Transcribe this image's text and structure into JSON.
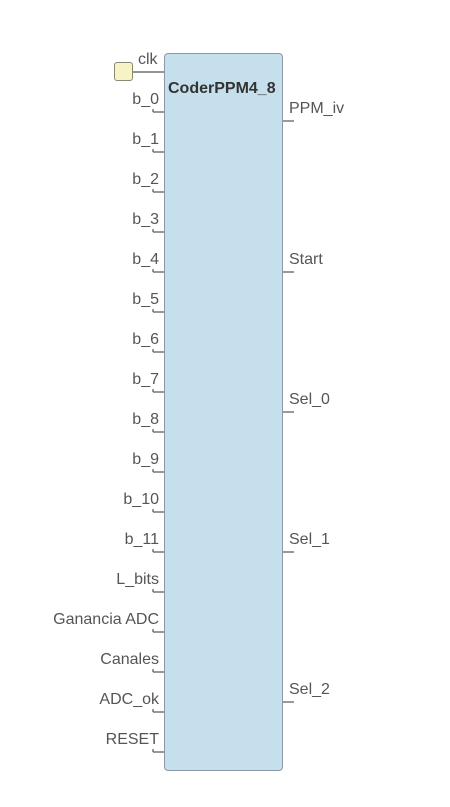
{
  "block": {
    "title": "CoderPPM4_8"
  },
  "clock": {
    "label": "clk",
    "marker_color": "#f6f3c6"
  },
  "inputs": [
    {
      "label": "b_0"
    },
    {
      "label": "b_1"
    },
    {
      "label": "b_2"
    },
    {
      "label": "b_3"
    },
    {
      "label": "b_4"
    },
    {
      "label": "b_5"
    },
    {
      "label": "b_6"
    },
    {
      "label": "b_7"
    },
    {
      "label": "b_8"
    },
    {
      "label": "b_9"
    },
    {
      "label": "b_10"
    },
    {
      "label": "b_11"
    },
    {
      "label": "L_bits"
    },
    {
      "label": "Ganancia ADC"
    },
    {
      "label": "Canales"
    },
    {
      "label": "ADC_ok"
    },
    {
      "label": "RESET"
    }
  ],
  "outputs": [
    {
      "label": "PPM_iv"
    },
    {
      "label": "Start"
    },
    {
      "label": "Sel_0"
    },
    {
      "label": "Sel_1"
    },
    {
      "label": "Sel_2"
    }
  ],
  "colors": {
    "block_fill": "#c5e0ec",
    "block_border": "#8c9aa3",
    "wire": "#555555"
  }
}
